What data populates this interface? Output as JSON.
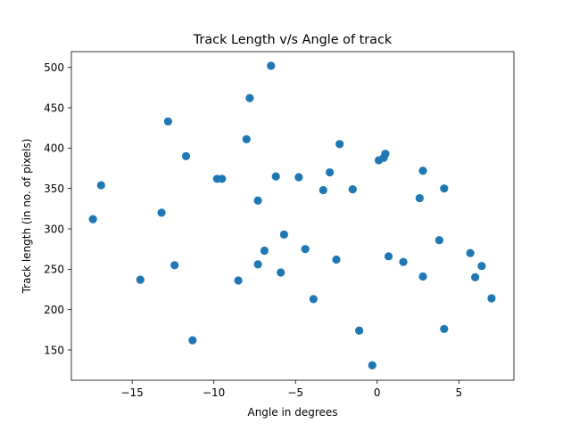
{
  "chart_data": {
    "type": "scatter",
    "title": "Track Length v/s Angle of track",
    "xlabel": "Angle in degrees",
    "ylabel": "Track length (in no. of pixels)",
    "xlim": [
      -18.72,
      8.37
    ],
    "ylim": [
      112.5,
      519.5
    ],
    "xticks": [
      -15,
      -10,
      -5,
      0,
      5
    ],
    "xtick_labels": [
      "−15",
      "−10",
      "−5",
      "0",
      "5"
    ],
    "yticks": [
      150,
      200,
      250,
      300,
      350,
      400,
      450,
      500
    ],
    "ytick_labels": [
      "150",
      "200",
      "250",
      "300",
      "350",
      "400",
      "450",
      "500"
    ],
    "grid": false,
    "marker_color": "#1f77b4",
    "points": [
      {
        "x": -17.4,
        "y": 312
      },
      {
        "x": -16.9,
        "y": 354
      },
      {
        "x": -14.5,
        "y": 237
      },
      {
        "x": -13.2,
        "y": 320
      },
      {
        "x": -12.8,
        "y": 433
      },
      {
        "x": -12.4,
        "y": 255
      },
      {
        "x": -11.7,
        "y": 390
      },
      {
        "x": -11.3,
        "y": 162
      },
      {
        "x": -9.8,
        "y": 362
      },
      {
        "x": -9.5,
        "y": 362
      },
      {
        "x": -8.5,
        "y": 236
      },
      {
        "x": -8.0,
        "y": 411
      },
      {
        "x": -7.8,
        "y": 462
      },
      {
        "x": -7.3,
        "y": 256
      },
      {
        "x": -7.3,
        "y": 335
      },
      {
        "x": -6.9,
        "y": 273
      },
      {
        "x": -6.5,
        "y": 502
      },
      {
        "x": -6.2,
        "y": 365
      },
      {
        "x": -5.9,
        "y": 246
      },
      {
        "x": -5.7,
        "y": 293
      },
      {
        "x": -4.8,
        "y": 364
      },
      {
        "x": -4.4,
        "y": 275
      },
      {
        "x": -3.9,
        "y": 213
      },
      {
        "x": -3.3,
        "y": 348
      },
      {
        "x": -2.9,
        "y": 370
      },
      {
        "x": -2.5,
        "y": 262
      },
      {
        "x": -2.3,
        "y": 405
      },
      {
        "x": -1.5,
        "y": 349
      },
      {
        "x": -1.1,
        "y": 174
      },
      {
        "x": -0.3,
        "y": 131
      },
      {
        "x": 0.1,
        "y": 385
      },
      {
        "x": 0.4,
        "y": 388
      },
      {
        "x": 0.5,
        "y": 393
      },
      {
        "x": 0.7,
        "y": 266
      },
      {
        "x": 1.6,
        "y": 259
      },
      {
        "x": 2.6,
        "y": 338
      },
      {
        "x": 2.8,
        "y": 372
      },
      {
        "x": 2.8,
        "y": 241
      },
      {
        "x": 3.8,
        "y": 286
      },
      {
        "x": 4.1,
        "y": 350
      },
      {
        "x": 4.1,
        "y": 176
      },
      {
        "x": 5.7,
        "y": 270
      },
      {
        "x": 6.0,
        "y": 240
      },
      {
        "x": 6.4,
        "y": 254
      },
      {
        "x": 7.0,
        "y": 214
      }
    ]
  }
}
